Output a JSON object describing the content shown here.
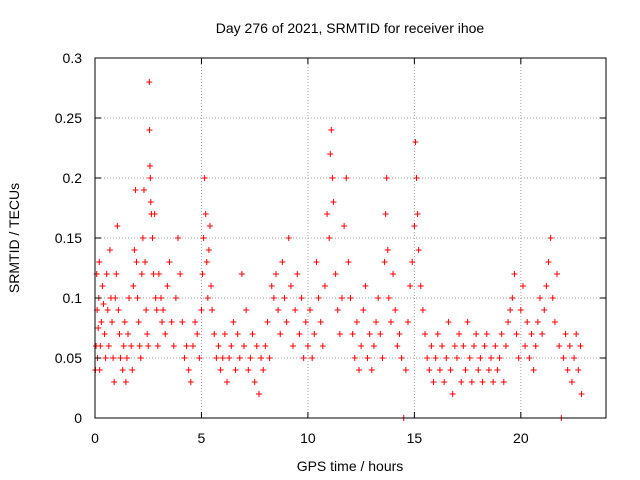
{
  "chart_data": {
    "type": "scatter",
    "title": "Day 276 of 2021, SRMTID for receiver ihoe",
    "xlabel": "GPS time / hours",
    "ylabel": "SRMTID / TECUs",
    "xlim": [
      0,
      24
    ],
    "ylim": [
      0,
      0.3
    ],
    "xticks": [
      0,
      5,
      10,
      15,
      20
    ],
    "xtick_labels": [
      "0",
      "5",
      "10",
      "15",
      "20"
    ],
    "yticks": [
      0,
      0.05,
      0.1,
      0.15,
      0.2,
      0.25,
      0.3
    ],
    "ytick_labels": [
      "0",
      "0.05",
      "0.1",
      "0.15",
      "0.2",
      "0.25",
      "0.3"
    ],
    "grid": true,
    "marker": "plus",
    "color": "#ff0000",
    "series": [
      {
        "name": "SRMTID",
        "points": [
          [
            0.02,
            0.04
          ],
          [
            0.05,
            0.06
          ],
          [
            0.08,
            0.12
          ],
          [
            0.1,
            0.09
          ],
          [
            0.12,
            0.05
          ],
          [
            0.15,
            0.075
          ],
          [
            0.18,
            0.1
          ],
          [
            0.2,
            0.13
          ],
          [
            0.22,
            0.04
          ],
          [
            0.25,
            0.06
          ],
          [
            0.3,
            0.08
          ],
          [
            0.35,
            0.11
          ],
          [
            0.4,
            0.095
          ],
          [
            0.45,
            0.07
          ],
          [
            0.5,
            0.05
          ],
          [
            0.55,
            0.12
          ],
          [
            0.6,
            0.09
          ],
          [
            0.65,
            0.06
          ],
          [
            0.7,
            0.14
          ],
          [
            0.75,
            0.1
          ],
          [
            0.8,
            0.08
          ],
          [
            0.85,
            0.05
          ],
          [
            0.9,
            0.03
          ],
          [
            0.95,
            0.1
          ],
          [
            1.0,
            0.12
          ],
          [
            1.05,
            0.16
          ],
          [
            1.1,
            0.09
          ],
          [
            1.15,
            0.07
          ],
          [
            1.2,
            0.05
          ],
          [
            1.3,
            0.04
          ],
          [
            1.35,
            0.06
          ],
          [
            1.4,
            0.08
          ],
          [
            1.45,
            0.03
          ],
          [
            1.5,
            0.05
          ],
          [
            1.55,
            0.07
          ],
          [
            1.6,
            0.1
          ],
          [
            1.7,
            0.06
          ],
          [
            1.75,
            0.04
          ],
          [
            1.8,
            0.11
          ],
          [
            1.85,
            0.14
          ],
          [
            1.9,
            0.19
          ],
          [
            1.95,
            0.13
          ],
          [
            2.0,
            0.1
          ],
          [
            2.05,
            0.08
          ],
          [
            2.1,
            0.06
          ],
          [
            2.15,
            0.05
          ],
          [
            2.2,
            0.12
          ],
          [
            2.25,
            0.15
          ],
          [
            2.3,
            0.19
          ],
          [
            2.35,
            0.13
          ],
          [
            2.4,
            0.09
          ],
          [
            2.45,
            0.07
          ],
          [
            2.5,
            0.06
          ],
          [
            2.55,
            0.28
          ],
          [
            2.56,
            0.24
          ],
          [
            2.58,
            0.21
          ],
          [
            2.6,
            0.2
          ],
          [
            2.62,
            0.18
          ],
          [
            2.65,
            0.17
          ],
          [
            2.7,
            0.15
          ],
          [
            2.75,
            0.12
          ],
          [
            2.8,
            0.17
          ],
          [
            2.85,
            0.1
          ],
          [
            2.9,
            0.09
          ],
          [
            2.95,
            0.06
          ],
          [
            3.0,
            0.12
          ],
          [
            3.1,
            0.1
          ],
          [
            3.15,
            0.08
          ],
          [
            3.2,
            0.09
          ],
          [
            3.3,
            0.07
          ],
          [
            3.4,
            0.11
          ],
          [
            3.5,
            0.13
          ],
          [
            3.6,
            0.08
          ],
          [
            3.7,
            0.06
          ],
          [
            3.8,
            0.1
          ],
          [
            3.9,
            0.15
          ],
          [
            4.0,
            0.12
          ],
          [
            4.1,
            0.08
          ],
          [
            4.2,
            0.05
          ],
          [
            4.3,
            0.06
          ],
          [
            4.4,
            0.04
          ],
          [
            4.5,
            0.03
          ],
          [
            4.6,
            0.06
          ],
          [
            4.7,
            0.08
          ],
          [
            4.8,
            0.07
          ],
          [
            4.9,
            0.05
          ],
          [
            5.0,
            0.09
          ],
          [
            5.05,
            0.12
          ],
          [
            5.1,
            0.15
          ],
          [
            5.15,
            0.2
          ],
          [
            5.2,
            0.17
          ],
          [
            5.25,
            0.13
          ],
          [
            5.3,
            0.1
          ],
          [
            5.35,
            0.14
          ],
          [
            5.4,
            0.16
          ],
          [
            5.45,
            0.11
          ],
          [
            5.5,
            0.09
          ],
          [
            5.6,
            0.07
          ],
          [
            5.7,
            0.05
          ],
          [
            5.8,
            0.06
          ],
          [
            5.9,
            0.04
          ],
          [
            6.0,
            0.05
          ],
          [
            6.1,
            0.07
          ],
          [
            6.2,
            0.03
          ],
          [
            6.3,
            0.05
          ],
          [
            6.4,
            0.06
          ],
          [
            6.5,
            0.08
          ],
          [
            6.6,
            0.04
          ],
          [
            6.7,
            0.07
          ],
          [
            6.8,
            0.05
          ],
          [
            6.9,
            0.12
          ],
          [
            7.0,
            0.06
          ],
          [
            7.1,
            0.09
          ],
          [
            7.2,
            0.04
          ],
          [
            7.3,
            0.05
          ],
          [
            7.4,
            0.07
          ],
          [
            7.5,
            0.03
          ],
          [
            7.6,
            0.06
          ],
          [
            7.7,
            0.02
          ],
          [
            7.8,
            0.05
          ],
          [
            7.9,
            0.04
          ],
          [
            8.0,
            0.06
          ],
          [
            8.1,
            0.08
          ],
          [
            8.2,
            0.05
          ],
          [
            8.3,
            0.11
          ],
          [
            8.4,
            0.1
          ],
          [
            8.5,
            0.12
          ],
          [
            8.6,
            0.09
          ],
          [
            8.7,
            0.07
          ],
          [
            8.8,
            0.13
          ],
          [
            8.9,
            0.1
          ],
          [
            9.0,
            0.08
          ],
          [
            9.1,
            0.15
          ],
          [
            9.2,
            0.11
          ],
          [
            9.3,
            0.06
          ],
          [
            9.4,
            0.09
          ],
          [
            9.5,
            0.12
          ],
          [
            9.6,
            0.07
          ],
          [
            9.7,
            0.1
          ],
          [
            9.8,
            0.05
          ],
          [
            9.9,
            0.08
          ],
          [
            10.0,
            0.06
          ],
          [
            10.1,
            0.09
          ],
          [
            10.2,
            0.05
          ],
          [
            10.3,
            0.07
          ],
          [
            10.4,
            0.13
          ],
          [
            10.5,
            0.1
          ],
          [
            10.6,
            0.08
          ],
          [
            10.7,
            0.06
          ],
          [
            10.8,
            0.11
          ],
          [
            10.9,
            0.17
          ],
          [
            11.0,
            0.15
          ],
          [
            11.05,
            0.22
          ],
          [
            11.1,
            0.24
          ],
          [
            11.15,
            0.2
          ],
          [
            11.2,
            0.18
          ],
          [
            11.3,
            0.12
          ],
          [
            11.4,
            0.09
          ],
          [
            11.5,
            0.07
          ],
          [
            11.6,
            0.1
          ],
          [
            11.7,
            0.16
          ],
          [
            11.8,
            0.2
          ],
          [
            11.9,
            0.13
          ],
          [
            12.0,
            0.1
          ],
          [
            12.1,
            0.07
          ],
          [
            12.2,
            0.05
          ],
          [
            12.3,
            0.08
          ],
          [
            12.4,
            0.04
          ],
          [
            12.5,
            0.06
          ],
          [
            12.6,
            0.09
          ],
          [
            12.7,
            0.11
          ],
          [
            12.8,
            0.05
          ],
          [
            12.9,
            0.07
          ],
          [
            13.0,
            0.04
          ],
          [
            13.1,
            0.06
          ],
          [
            13.2,
            0.08
          ],
          [
            13.3,
            0.1
          ],
          [
            13.4,
            0.07
          ],
          [
            13.5,
            0.05
          ],
          [
            13.6,
            0.13
          ],
          [
            13.65,
            0.17
          ],
          [
            13.7,
            0.2
          ],
          [
            13.75,
            0.14
          ],
          [
            13.8,
            0.1
          ],
          [
            13.9,
            0.08
          ],
          [
            14.0,
            0.12
          ],
          [
            14.1,
            0.09
          ],
          [
            14.2,
            0.06
          ],
          [
            14.3,
            0.07
          ],
          [
            14.4,
            0.05
          ],
          [
            14.5,
            0.0
          ],
          [
            14.6,
            0.04
          ],
          [
            14.7,
            0.08
          ],
          [
            14.8,
            0.11
          ],
          [
            14.9,
            0.13
          ],
          [
            15.0,
            0.16
          ],
          [
            15.05,
            0.23
          ],
          [
            15.1,
            0.2
          ],
          [
            15.15,
            0.17
          ],
          [
            15.2,
            0.14
          ],
          [
            15.3,
            0.11
          ],
          [
            15.4,
            0.09
          ],
          [
            15.5,
            0.07
          ],
          [
            15.6,
            0.05
          ],
          [
            15.7,
            0.04
          ],
          [
            15.8,
            0.06
          ],
          [
            15.9,
            0.03
          ],
          [
            16.0,
            0.05
          ],
          [
            16.1,
            0.07
          ],
          [
            16.2,
            0.04
          ],
          [
            16.3,
            0.06
          ],
          [
            16.4,
            0.03
          ],
          [
            16.5,
            0.05
          ],
          [
            16.6,
            0.08
          ],
          [
            16.7,
            0.04
          ],
          [
            16.8,
            0.02
          ],
          [
            16.9,
            0.06
          ],
          [
            17.0,
            0.05
          ],
          [
            17.1,
            0.07
          ],
          [
            17.2,
            0.03
          ],
          [
            17.3,
            0.06
          ],
          [
            17.4,
            0.04
          ],
          [
            17.5,
            0.08
          ],
          [
            17.6,
            0.05
          ],
          [
            17.7,
            0.03
          ],
          [
            17.8,
            0.06
          ],
          [
            17.9,
            0.07
          ],
          [
            18.0,
            0.04
          ],
          [
            18.1,
            0.05
          ],
          [
            18.2,
            0.03
          ],
          [
            18.3,
            0.06
          ],
          [
            18.4,
            0.07
          ],
          [
            18.5,
            0.04
          ],
          [
            18.6,
            0.05
          ],
          [
            18.7,
            0.03
          ],
          [
            18.8,
            0.06
          ],
          [
            18.9,
            0.04
          ],
          [
            19.0,
            0.05
          ],
          [
            19.1,
            0.07
          ],
          [
            19.2,
            0.03
          ],
          [
            19.3,
            0.06
          ],
          [
            19.4,
            0.08
          ],
          [
            19.5,
            0.09
          ],
          [
            19.6,
            0.1
          ],
          [
            19.7,
            0.12
          ],
          [
            19.8,
            0.07
          ],
          [
            19.9,
            0.05
          ],
          [
            20.0,
            0.09
          ],
          [
            20.1,
            0.11
          ],
          [
            20.2,
            0.06
          ],
          [
            20.3,
            0.08
          ],
          [
            20.4,
            0.05
          ],
          [
            20.5,
            0.07
          ],
          [
            20.6,
            0.04
          ],
          [
            20.7,
            0.06
          ],
          [
            20.8,
            0.08
          ],
          [
            20.9,
            0.1
          ],
          [
            21.0,
            0.07
          ],
          [
            21.1,
            0.09
          ],
          [
            21.2,
            0.11
          ],
          [
            21.3,
            0.13
          ],
          [
            21.4,
            0.15
          ],
          [
            21.5,
            0.1
          ],
          [
            21.6,
            0.08
          ],
          [
            21.7,
            0.12
          ],
          [
            21.8,
            0.06
          ],
          [
            21.9,
            0.0
          ],
          [
            22.0,
            0.05
          ],
          [
            22.1,
            0.07
          ],
          [
            22.2,
            0.04
          ],
          [
            22.3,
            0.06
          ],
          [
            22.4,
            0.03
          ],
          [
            22.5,
            0.05
          ],
          [
            22.6,
            0.07
          ],
          [
            22.7,
            0.04
          ],
          [
            22.8,
            0.06
          ],
          [
            22.85,
            0.02
          ]
        ]
      }
    ]
  }
}
